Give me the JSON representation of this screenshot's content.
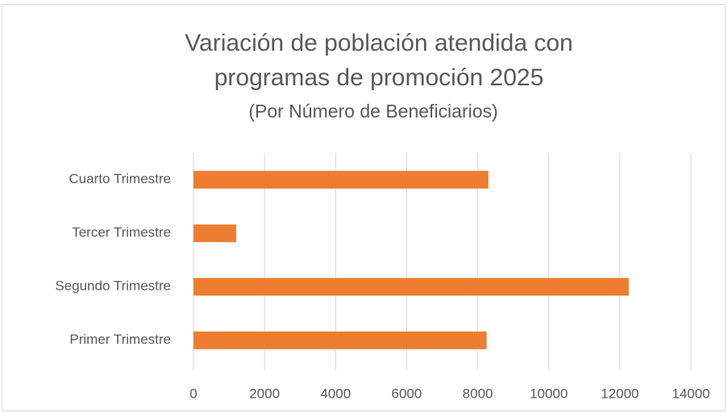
{
  "chart_data": {
    "type": "bar",
    "orientation": "horizontal",
    "title": [
      "Variación de población atendida con",
      "programas de promoción 2025"
    ],
    "subtitle": "(Por Número de Beneficiarios)",
    "categories": [
      "Primer Trimestre",
      "Segundo Trimestre",
      "Tercer Trimestre",
      "Cuarto Trimestre"
    ],
    "values": [
      8250,
      12250,
      1200,
      8300
    ],
    "color": "#ED7D31",
    "xlim": [
      0,
      14000
    ],
    "xticks": [
      0,
      2000,
      4000,
      6000,
      8000,
      10000,
      12000,
      14000
    ],
    "grid": true
  }
}
